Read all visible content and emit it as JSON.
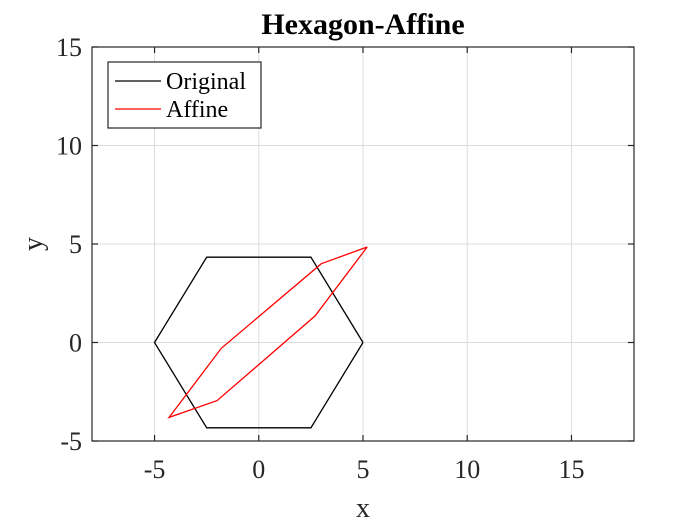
{
  "chart_data": {
    "type": "line",
    "title": "Hexagon-Affine",
    "xlabel": "x",
    "ylabel": "y",
    "xlim": [
      -8,
      18
    ],
    "ylim": [
      -5,
      15
    ],
    "xticks": [
      -5,
      0,
      5,
      10,
      15
    ],
    "yticks": [
      -5,
      0,
      5,
      10,
      15
    ],
    "xtick_labels": [
      "-5",
      "0",
      "5",
      "10",
      "15"
    ],
    "ytick_labels": [
      "-5",
      "0",
      "5",
      "10",
      "15"
    ],
    "grid": true,
    "legend_position": "top-left",
    "series": [
      {
        "name": "Original",
        "color": "#000000",
        "x": [
          5,
          2.5,
          -2.5,
          -5,
          -2.5,
          2.5,
          5
        ],
        "y": [
          0,
          4.33,
          4.33,
          0,
          -4.33,
          -4.33,
          0
        ]
      },
      {
        "name": "Affine",
        "color": "#ff0000",
        "x": [
          5.2,
          3.0,
          -1.8,
          -4.3,
          -2.0,
          2.7,
          5.2
        ],
        "y": [
          4.85,
          4.0,
          -0.3,
          -3.8,
          -2.95,
          1.35,
          4.85
        ]
      }
    ]
  }
}
